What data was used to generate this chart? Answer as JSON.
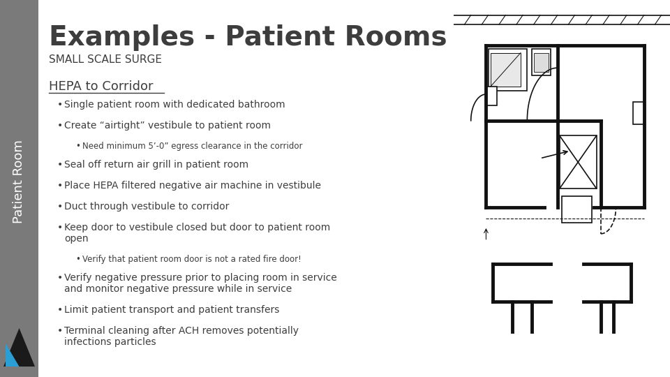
{
  "title": "Examples - Patient Rooms",
  "subtitle": "SMALL SCALE SURGE",
  "section_header": "HEPA to Corridor",
  "background_color": "#ffffff",
  "sidebar_color": "#7a7a7a",
  "sidebar_text": "Patient Room",
  "sidebar_text_color": "#ffffff",
  "title_color": "#3d3d3d",
  "body_color": "#3d3d3d",
  "title_fontsize": 28,
  "subtitle_fontsize": 11,
  "header_fontsize": 13,
  "body_fontsize": 10,
  "small_fontsize": 8.5,
  "bullet_lines": [
    {
      "level": 1,
      "text": "Single patient room with dedicated bathroom"
    },
    {
      "level": 1,
      "text": "Create “airtight” vestibule to patient room"
    },
    {
      "level": 2,
      "text": "Need minimum 5’-0” egress clearance in the corridor"
    },
    {
      "level": 1,
      "text": "Seal off return air grill in patient room"
    },
    {
      "level": 1,
      "text": "Place HEPA filtered negative air machine in vestibule"
    },
    {
      "level": 1,
      "text": "Duct through vestibule to corridor"
    },
    {
      "level": 1,
      "text": "Keep door to vestibule closed but door to patient room\nopen"
    },
    {
      "level": 2,
      "text": "Verify that patient room door is not a rated fire door!"
    },
    {
      "level": 1,
      "text": "Verify negative pressure prior to placing room in service\nand monitor negative pressure while in service"
    },
    {
      "level": 1,
      "text": "Limit patient transport and patient transfers"
    },
    {
      "level": 1,
      "text": "Terminal cleaning after ACH removes potentially\ninfections particles"
    }
  ],
  "cyan_color": "#2a9fd6",
  "black_color": "#1a1a1a"
}
